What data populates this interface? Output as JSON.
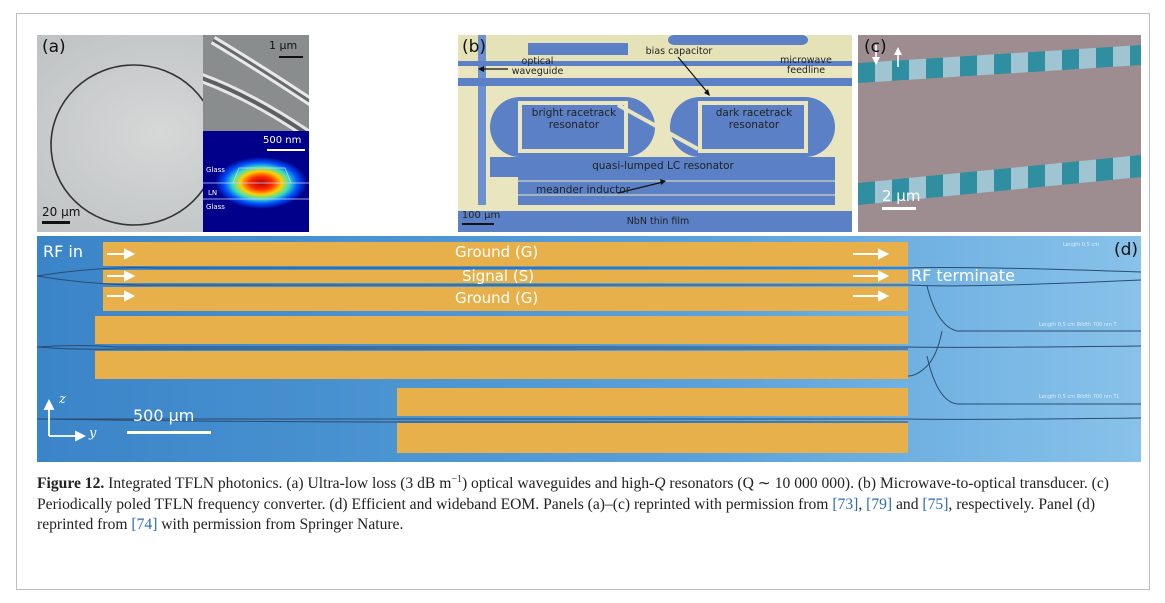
{
  "panels": {
    "a": {
      "label": "(a)",
      "scale_main": "20 μm",
      "scale_inset_top": "1 μm",
      "scale_inset_bottom": "500 nm",
      "layers": [
        "Glass",
        "LN",
        "Glass"
      ]
    },
    "b": {
      "label": "(b)",
      "optical_waveguide": "optical waveguide",
      "bias_capacitor": "bias capacitor",
      "microwave_feedline": "microwave feedline",
      "bright_resonator": "bright racetrack resonator",
      "dark_resonator": "dark racetrack resonator",
      "lc_resonator": "quasi-lumped LC resonator",
      "meander_inductor": "meander inductor",
      "scale": "100 μm",
      "film": "NbN thin film"
    },
    "c": {
      "label": "(c)",
      "scale": "2 μm"
    },
    "d": {
      "label": "(d)",
      "rf_in": "RF in",
      "ground_top": "Ground (G)",
      "signal": "Signal (S)",
      "ground_bottom": "Ground (G)",
      "rf_terminate": "RF terminate",
      "scale": "500 μm",
      "axis_z": "z",
      "axis_y": "y",
      "tiny_labels": [
        "Length 0.5 cm",
        "Length 0.5 cm Width 700 nm T",
        "Length 0.5 cm Width 700 nm TL"
      ]
    }
  },
  "caption": {
    "figure_label": "Figure 12.",
    "text1": " Integrated TFLN photonics. (a) Ultra-low loss (3 dB m",
    "sup": "−1",
    "text2": ") optical waveguides and high-",
    "q_italic": "Q",
    "text3": " resonators (Q ∼ 10 000 000). (b) Microwave-to-optical transducer. (c) Periodically poled TFLN frequency converter. (d) Efficient and wideband EOM. Panels (a)–(c) reprinted with permission from ",
    "ref1": "[73]",
    "sep1": ", ",
    "ref2": "[79]",
    "sep2": " and ",
    "ref3": "[75]",
    "text4": ", respectively. Panel (d) reprinted from ",
    "ref4": "[74]",
    "text5": " with permission from Springer Nature."
  }
}
